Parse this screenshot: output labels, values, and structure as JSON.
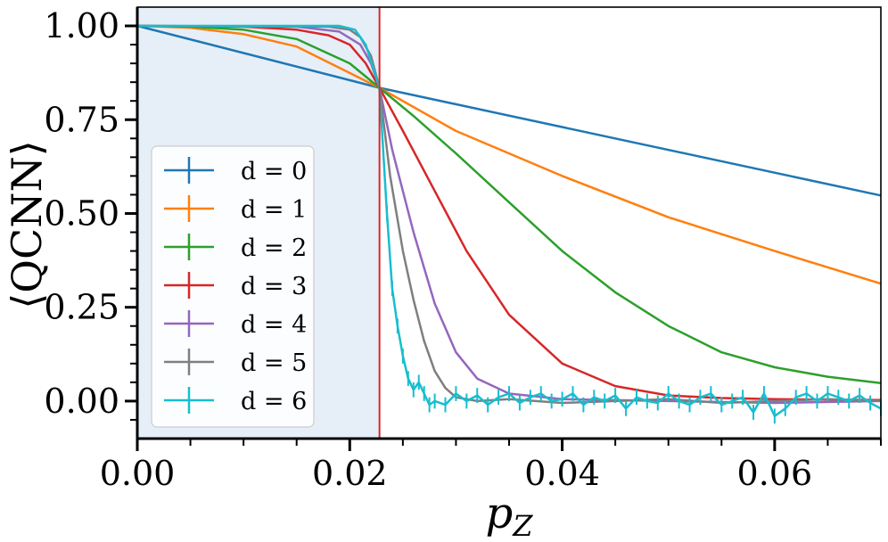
{
  "chart_data": {
    "type": "line",
    "xlabel": "p_Z",
    "ylabel": "⟨QCNN⟩",
    "xlim": [
      0.0,
      0.07
    ],
    "ylim": [
      -0.1,
      1.05
    ],
    "x_ticks": [
      0.0,
      0.02,
      0.04,
      0.06
    ],
    "x_tick_labels": [
      "0.00",
      "0.02",
      "0.04",
      "0.06"
    ],
    "y_ticks": [
      0.0,
      0.25,
      0.5,
      0.75,
      1.0
    ],
    "y_tick_labels": [
      "0.00",
      "0.25",
      "0.50",
      "0.75",
      "1.00"
    ],
    "threshold": 0.0228,
    "threshold_color": "#d62728",
    "shade_color": "#e6eff8",
    "legend_position": "center-left",
    "series": [
      {
        "name": "d = 0",
        "color": "#1f77b4",
        "x": [
          0.0,
          0.0228,
          0.07
        ],
        "y": [
          1.0,
          0.835,
          0.548
        ]
      },
      {
        "name": "d = 1",
        "color": "#ff7f0e",
        "x": [
          0.0,
          0.005,
          0.01,
          0.015,
          0.0228,
          0.03,
          0.04,
          0.05,
          0.06,
          0.07
        ],
        "y": [
          1.0,
          0.995,
          0.978,
          0.945,
          0.835,
          0.72,
          0.6,
          0.49,
          0.4,
          0.313
        ]
      },
      {
        "name": "d = 2",
        "color": "#2ca02c",
        "x": [
          0.0,
          0.005,
          0.01,
          0.015,
          0.02,
          0.0228,
          0.026,
          0.03,
          0.035,
          0.04,
          0.045,
          0.05,
          0.055,
          0.06,
          0.065,
          0.07
        ],
        "y": [
          1.0,
          0.998,
          0.99,
          0.965,
          0.9,
          0.835,
          0.76,
          0.66,
          0.53,
          0.4,
          0.29,
          0.2,
          0.13,
          0.09,
          0.065,
          0.048
        ]
      },
      {
        "name": "d = 3",
        "color": "#d62728",
        "x": [
          0.0,
          0.01,
          0.015,
          0.018,
          0.02,
          0.0215,
          0.0228,
          0.025,
          0.028,
          0.031,
          0.035,
          0.04,
          0.045,
          0.05,
          0.055,
          0.06,
          0.07
        ],
        "y": [
          1.0,
          0.998,
          0.99,
          0.975,
          0.95,
          0.9,
          0.835,
          0.72,
          0.56,
          0.4,
          0.23,
          0.1,
          0.04,
          0.015,
          0.008,
          0.005,
          0.003
        ]
      },
      {
        "name": "d = 4",
        "color": "#9467bd",
        "x": [
          0.0,
          0.015,
          0.019,
          0.021,
          0.022,
          0.0228,
          0.024,
          0.026,
          0.028,
          0.03,
          0.032,
          0.035,
          0.04,
          0.05,
          0.06,
          0.07
        ],
        "y": [
          1.0,
          0.998,
          0.985,
          0.95,
          0.9,
          0.835,
          0.67,
          0.45,
          0.26,
          0.13,
          0.06,
          0.02,
          0.005,
          0.0,
          -0.005,
          0.0
        ]
      },
      {
        "name": "d = 5",
        "color": "#7f7f7f",
        "x": [
          0.0,
          0.018,
          0.02,
          0.021,
          0.022,
          0.0228,
          0.0238,
          0.025,
          0.026,
          0.027,
          0.028,
          0.029,
          0.03,
          0.032,
          0.035,
          0.04,
          0.045,
          0.05,
          0.055,
          0.06,
          0.065,
          0.07
        ],
        "y": [
          1.0,
          0.998,
          0.99,
          0.97,
          0.92,
          0.835,
          0.6,
          0.4,
          0.27,
          0.16,
          0.08,
          0.035,
          0.01,
          0.0,
          0.005,
          -0.005,
          0.0,
          0.005,
          -0.005,
          0.0,
          0.005,
          0.0
        ]
      },
      {
        "name": "d = 6",
        "color": "#17becf",
        "x": [
          0.0,
          0.019,
          0.0205,
          0.0215,
          0.0228,
          0.0235,
          0.024,
          0.0245,
          0.025,
          0.0255,
          0.026,
          0.0265,
          0.027,
          0.0275,
          0.028,
          0.029,
          0.03,
          0.031,
          0.032,
          0.033,
          0.034,
          0.035,
          0.036,
          0.037,
          0.038,
          0.039,
          0.04,
          0.041,
          0.042,
          0.043,
          0.044,
          0.045,
          0.046,
          0.047,
          0.048,
          0.049,
          0.05,
          0.051,
          0.052,
          0.053,
          0.054,
          0.055,
          0.056,
          0.057,
          0.058,
          0.059,
          0.06,
          0.061,
          0.062,
          0.063,
          0.064,
          0.065,
          0.066,
          0.067,
          0.068,
          0.069,
          0.07
        ],
        "y": [
          1.0,
          1.0,
          0.99,
          0.95,
          0.835,
          0.5,
          0.3,
          0.2,
          0.12,
          0.06,
          0.03,
          0.05,
          0.02,
          -0.01,
          0.0,
          -0.01,
          0.02,
          0.0,
          0.015,
          -0.01,
          0.01,
          0.02,
          -0.005,
          0.01,
          0.02,
          0.0,
          0.005,
          0.02,
          -0.01,
          0.01,
          0.0,
          0.015,
          -0.02,
          0.01,
          0.0,
          -0.005,
          0.02,
          0.0,
          -0.01,
          0.01,
          0.02,
          -0.01,
          0.0,
          0.01,
          -0.03,
          0.02,
          -0.04,
          -0.02,
          0.01,
          0.02,
          0.0,
          0.02,
          0.01,
          0.0,
          0.015,
          -0.005,
          -0.02
        ],
        "err": 0.02
      }
    ]
  }
}
